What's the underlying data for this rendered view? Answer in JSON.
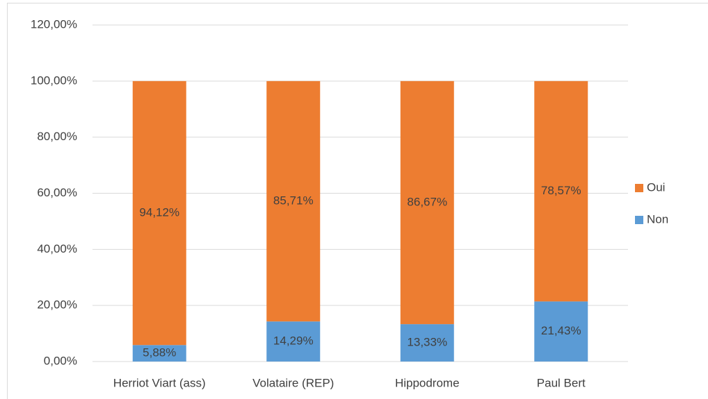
{
  "chart_data": {
    "type": "bar",
    "stacked": true,
    "categories": [
      "Herriot Viart (ass)",
      "Volataire (REP)",
      "Hippodrome",
      "Paul Bert"
    ],
    "series": [
      {
        "name": "Non",
        "color": "#5b9bd5",
        "values": [
          5.88,
          14.29,
          13.33,
          21.43
        ],
        "value_labels": [
          "5,88%",
          "14,29%",
          "13,33%",
          "21,43%"
        ]
      },
      {
        "name": "Oui",
        "color": "#ed7d31",
        "values": [
          94.12,
          85.71,
          86.67,
          78.57
        ],
        "value_labels": [
          "94,12%",
          "85,71%",
          "86,67%",
          "78,57%"
        ]
      }
    ],
    "ylim": [
      0,
      120
    ],
    "yticks": [
      {
        "value": 0,
        "label": "0,00%"
      },
      {
        "value": 20,
        "label": "20,00%"
      },
      {
        "value": 40,
        "label": "40,00%"
      },
      {
        "value": 60,
        "label": "60,00%"
      },
      {
        "value": 80,
        "label": "80,00%"
      },
      {
        "value": 100,
        "label": "100,00%"
      },
      {
        "value": 120,
        "label": "120,00%"
      }
    ],
    "grid": true,
    "legend": "right"
  }
}
